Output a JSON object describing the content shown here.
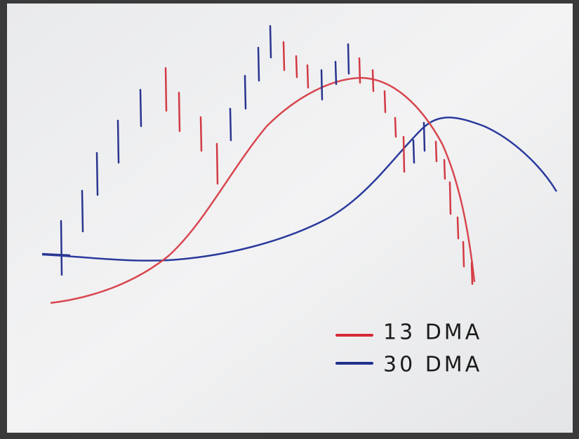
{
  "legend": {
    "items": [
      {
        "label": "13 DMA"
      },
      {
        "label": "30 DMA"
      }
    ]
  }
}
